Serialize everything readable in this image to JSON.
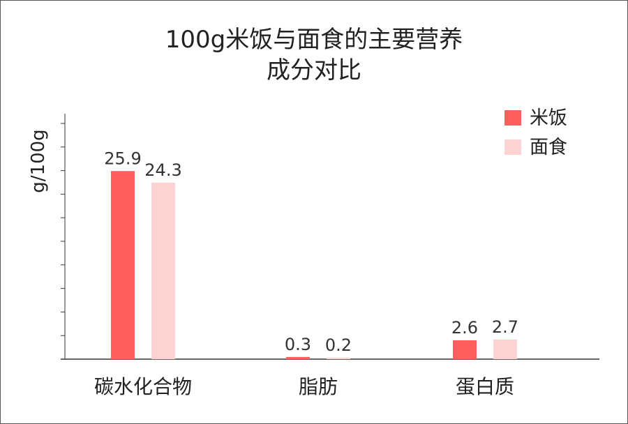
{
  "chart_data": {
    "type": "bar",
    "title": "100g米饭与面食的主要营养成分对比",
    "title_lines": [
      "100g米饭与面食的主要营养",
      "成分对比"
    ],
    "ylabel": "g/100g",
    "xlabel": "",
    "categories": [
      "碳水化合物",
      "脂肪",
      "蛋白质"
    ],
    "series": [
      {
        "name": "米饭",
        "values": [
          25.9,
          0.3,
          2.6
        ],
        "labels": [
          "25.9",
          "0.3",
          "2.6"
        ],
        "color": "#ff5e5e"
      },
      {
        "name": "面食",
        "values": [
          24.3,
          0.2,
          2.7
        ],
        "labels": [
          "24.3",
          "0.2",
          "2.7"
        ],
        "color": "#ffd2d2"
      }
    ],
    "ylim": [
      0,
      33.8
    ],
    "y_tick_count": 10,
    "grid": false,
    "legend_position": "top-right"
  }
}
